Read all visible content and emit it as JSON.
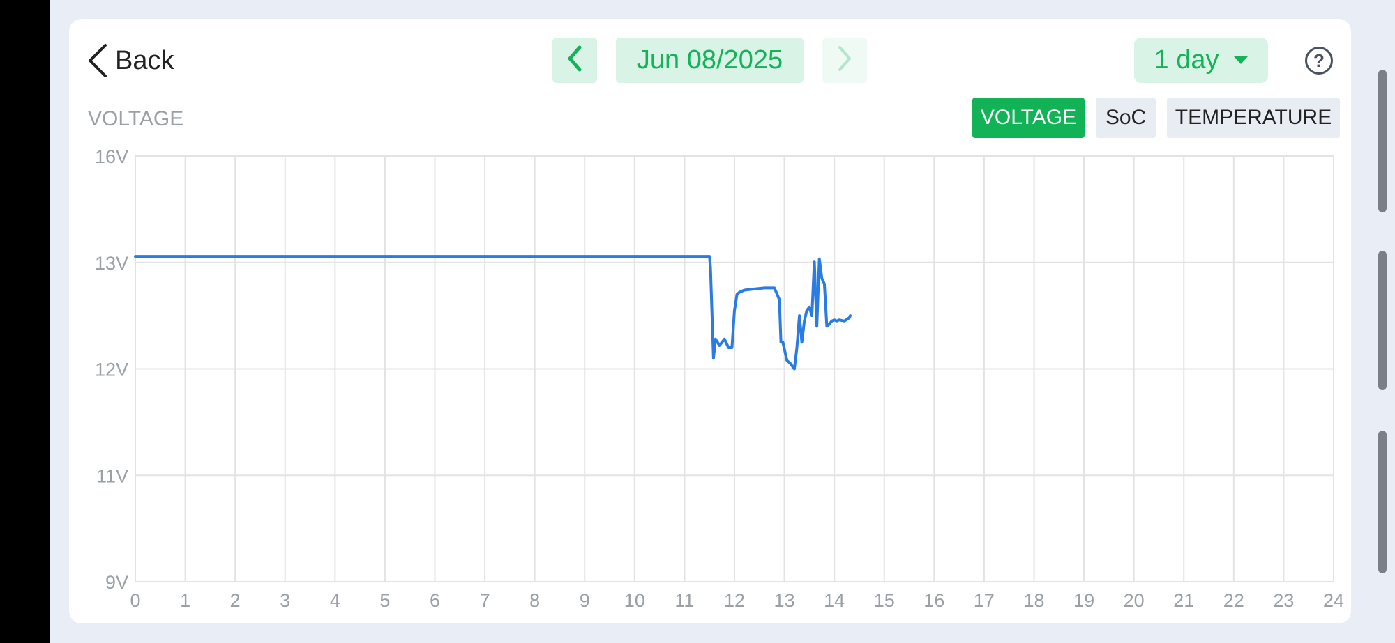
{
  "header": {
    "back_label": "Back",
    "date_label": "Jun 08/2025",
    "range_label": "1 day",
    "help_label": "?"
  },
  "section": {
    "title": "VOLTAGE"
  },
  "tabs": [
    {
      "label": "VOLTAGE",
      "active": true
    },
    {
      "label": "SoC",
      "active": false
    },
    {
      "label": "TEMPERATURE",
      "active": false
    }
  ],
  "colors": {
    "accent": "#12b357",
    "accent_light": "#d9f3e6",
    "series": "#2a7be4",
    "grid": "#e3e3e3"
  },
  "chart_data": {
    "type": "line",
    "title": "",
    "xlabel": "",
    "ylabel": "",
    "y_ticks": [
      {
        "value": 16,
        "label": "16V"
      },
      {
        "value": 13,
        "label": "13V"
      },
      {
        "value": 12,
        "label": "12V"
      },
      {
        "value": 11,
        "label": "11V"
      },
      {
        "value": 9,
        "label": "9V"
      }
    ],
    "x_ticks": [
      "0",
      "1",
      "2",
      "3",
      "4",
      "5",
      "6",
      "7",
      "8",
      "9",
      "10",
      "11",
      "12",
      "13",
      "14",
      "15",
      "16",
      "17",
      "18",
      "19",
      "20",
      "21",
      "22",
      "23",
      "24"
    ],
    "xlim": [
      0,
      24
    ],
    "grid": true,
    "series": [
      {
        "x": [
          0,
          2,
          4,
          6,
          8,
          10,
          11.5,
          11.52,
          11.58,
          11.62,
          11.7,
          11.8,
          11.88,
          11.95,
          12.0,
          12.05,
          12.1,
          12.2,
          12.4,
          12.6,
          12.8,
          12.9,
          12.93,
          12.97,
          13.05,
          13.12,
          13.2,
          13.25,
          13.3,
          13.35,
          13.4,
          13.45,
          13.5,
          13.55,
          13.6,
          13.65,
          13.7,
          13.75,
          13.8,
          13.85,
          13.9,
          13.95,
          14.0,
          14.05,
          14.1,
          14.2,
          14.3,
          14.32
        ],
        "y": [
          13.17,
          13.17,
          13.17,
          13.17,
          13.17,
          13.17,
          13.17,
          12.95,
          12.1,
          12.28,
          12.22,
          12.28,
          12.2,
          12.2,
          12.55,
          12.7,
          12.72,
          12.74,
          12.75,
          12.76,
          12.76,
          12.65,
          12.25,
          12.25,
          12.08,
          12.05,
          12.0,
          12.2,
          12.5,
          12.25,
          12.45,
          12.55,
          12.58,
          12.5,
          13.03,
          12.4,
          13.1,
          12.85,
          12.8,
          12.4,
          12.42,
          12.45,
          12.46,
          12.45,
          12.46,
          12.45,
          12.48,
          12.5
        ]
      }
    ]
  }
}
